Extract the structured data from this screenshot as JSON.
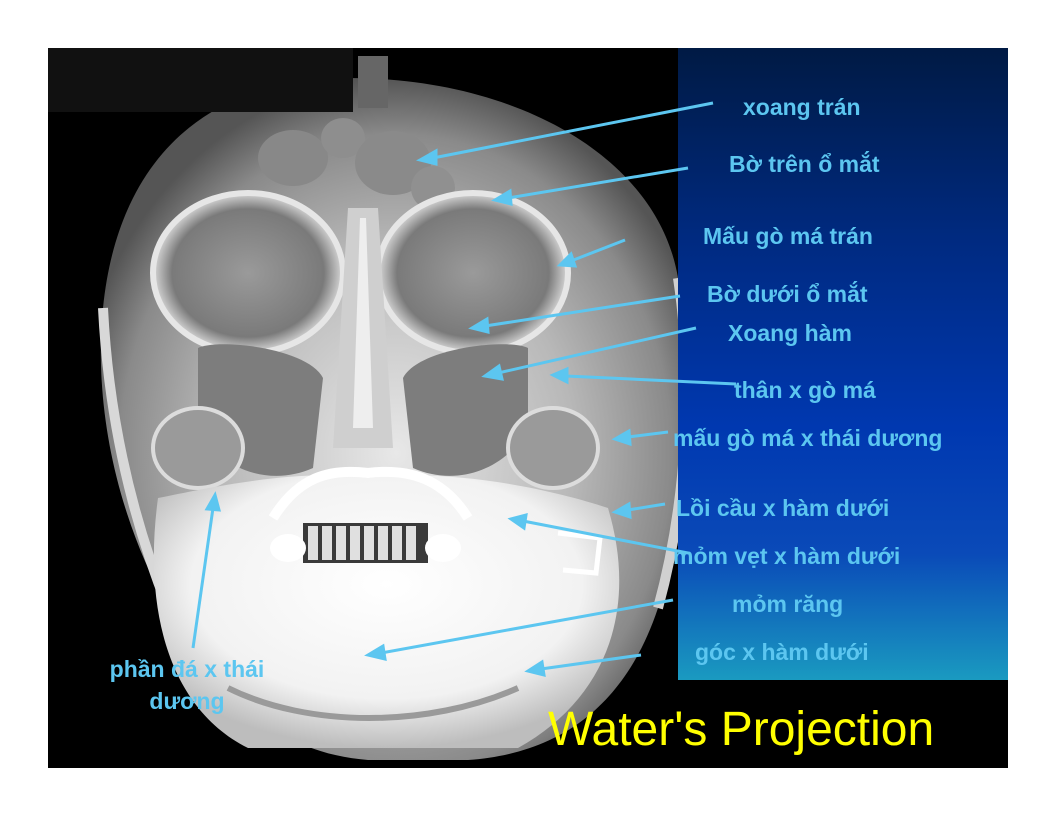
{
  "title": "Water's Projection",
  "labels": [
    {
      "id": "xoang-tran",
      "text": "xoang trán"
    },
    {
      "id": "bo-tren-o-mat",
      "text": "Bờ trên ổ mắt"
    },
    {
      "id": "mau-go-ma-tran",
      "text": "Mấu gò má trán"
    },
    {
      "id": "bo-duoi-o-mat",
      "text": "Bờ dưới ổ mắt"
    },
    {
      "id": "xoang-ham",
      "text": "Xoang hàm"
    },
    {
      "id": "than-x-go-ma",
      "text": "thân x gò má"
    },
    {
      "id": "mau-go-ma-x-thai-duong",
      "text": "mấu gò má x thái dương"
    },
    {
      "id": "loi-cau-x-ham-duoi",
      "text": "Lồi cầu x hàm dưới"
    },
    {
      "id": "mom-vet-x-ham-duoi",
      "text": "mỏm vẹt x hàm dưới"
    },
    {
      "id": "mom-rang",
      "text": "mỏm răng"
    },
    {
      "id": "goc-x-ham-duoi",
      "text": "góc x hàm dưới"
    },
    {
      "id": "phan-da-x-thai-duong",
      "line1": "phần đá x thái",
      "line2": "dương"
    }
  ],
  "colors": {
    "label": "#5cc6f0",
    "title": "#ffff00",
    "panel": "#0038b0"
  }
}
